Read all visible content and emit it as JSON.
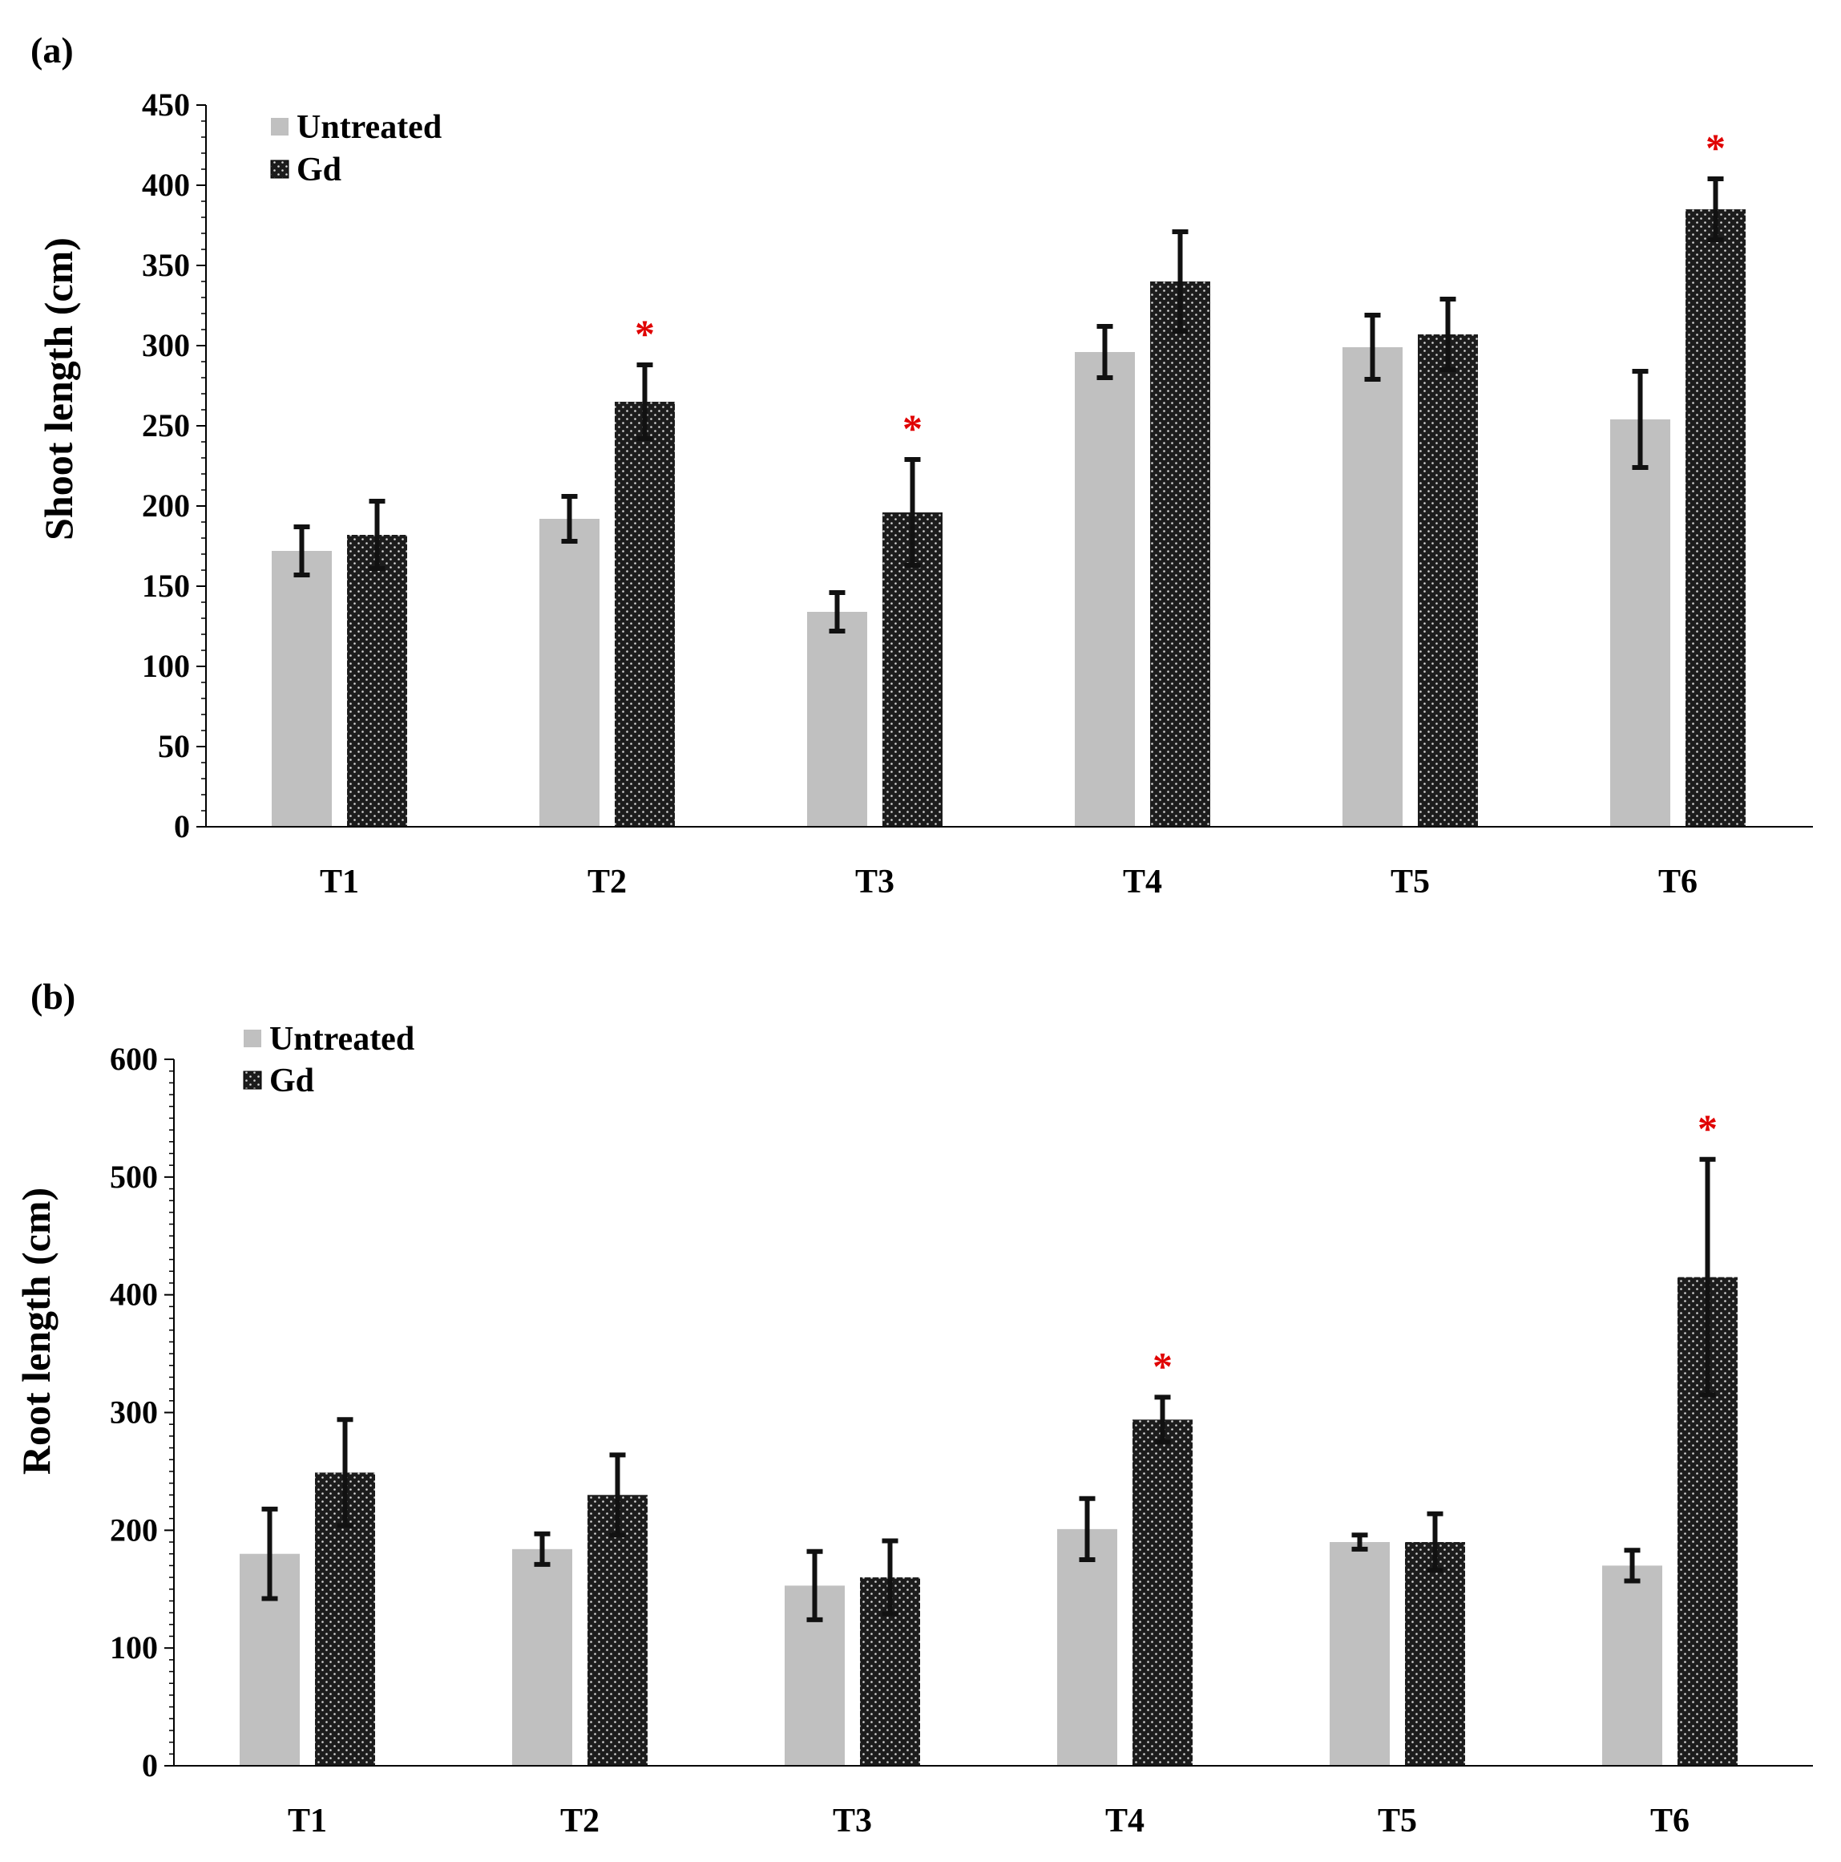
{
  "chart_data": [
    {
      "type": "bar",
      "panel": "(a)",
      "ylabel": "Shoot length (cm)",
      "xlabel": "",
      "ylim": [
        0,
        450
      ],
      "yticks": [
        0,
        50,
        100,
        150,
        200,
        250,
        300,
        350,
        400,
        450
      ],
      "categories": [
        "T1",
        "T2",
        "T3",
        "T4",
        "T5",
        "T6"
      ],
      "legend": {
        "placement": "top-left",
        "entries": [
          "Untreated",
          "Gd"
        ]
      },
      "series": [
        {
          "name": "Untreated",
          "color": "#c0c0c0",
          "values": [
            172,
            192,
            134,
            296,
            299,
            254
          ],
          "errors": [
            15,
            14,
            12,
            16,
            20,
            30
          ]
        },
        {
          "name": "Gd",
          "color": "#2b2b2b",
          "values": [
            182,
            265,
            196,
            340,
            307,
            385
          ],
          "errors": [
            21,
            23,
            33,
            31,
            22,
            19
          ]
        }
      ],
      "annotations": [
        {
          "text": "*",
          "category": "T2",
          "series": "Gd"
        },
        {
          "text": "*",
          "category": "T3",
          "series": "Gd"
        },
        {
          "text": "*",
          "category": "T6",
          "series": "Gd"
        }
      ]
    },
    {
      "type": "bar",
      "panel": "(b)",
      "ylabel": "Root length (cm)",
      "xlabel": "",
      "ylim": [
        0,
        600
      ],
      "yticks": [
        0,
        100,
        200,
        300,
        400,
        500,
        600
      ],
      "categories": [
        "T1",
        "T2",
        "T3",
        "T4",
        "T5",
        "T6"
      ],
      "legend": {
        "placement": "top-left",
        "entries": [
          "Untreated",
          "Gd"
        ]
      },
      "series": [
        {
          "name": "Untreated",
          "color": "#c0c0c0",
          "values": [
            180,
            184,
            153,
            201,
            190,
            170
          ],
          "errors": [
            38,
            13,
            29,
            26,
            6,
            13
          ]
        },
        {
          "name": "Gd",
          "color": "#2b2b2b",
          "values": [
            249,
            230,
            160,
            294,
            190,
            415
          ],
          "errors": [
            45,
            34,
            31,
            19,
            24,
            100
          ]
        }
      ],
      "annotations": [
        {
          "text": "*",
          "category": "T4",
          "series": "Gd"
        },
        {
          "text": "*",
          "category": "T6",
          "series": "Gd"
        }
      ]
    }
  ]
}
